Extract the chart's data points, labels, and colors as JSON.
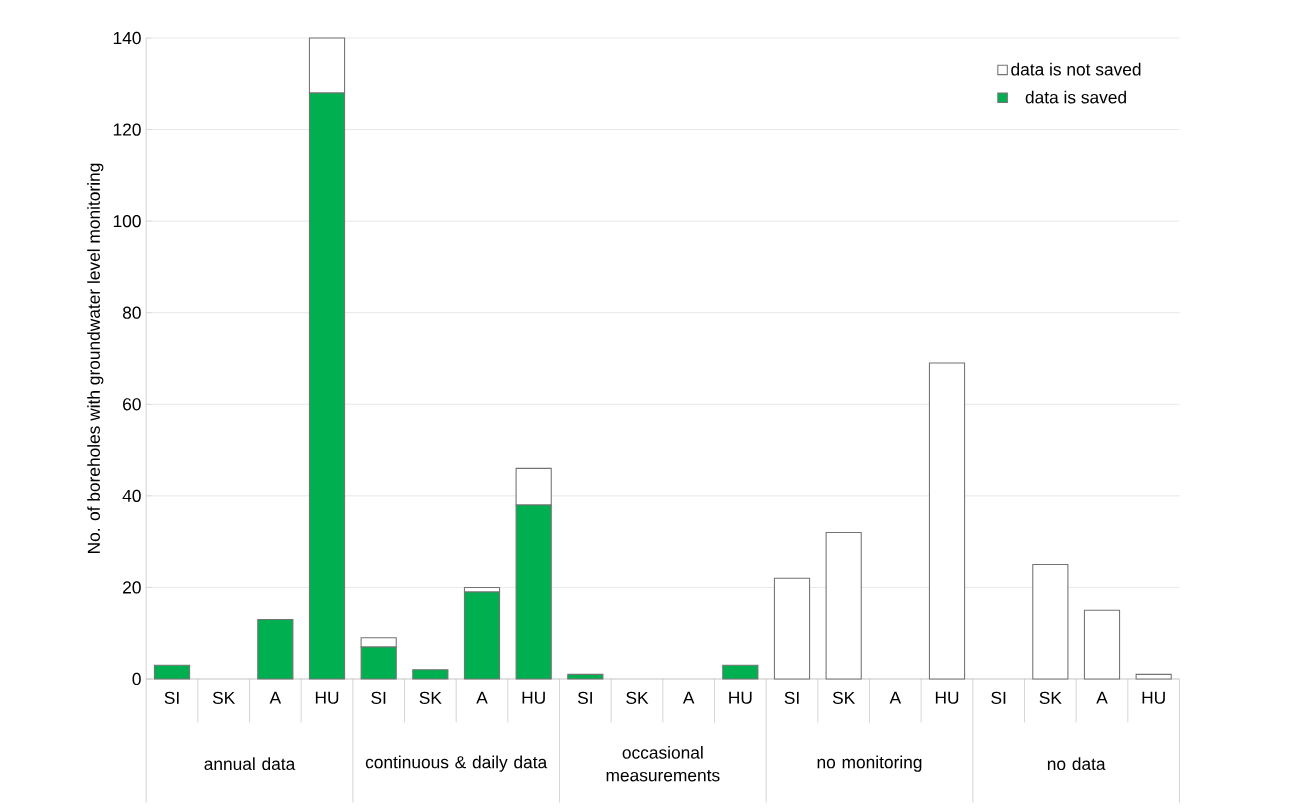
{
  "chart_data": {
    "type": "bar",
    "stacked": true,
    "ylabel": "No. of boreholes with groundwater level monitoring",
    "categories": [
      "SI",
      "SK",
      "A",
      "HU",
      "SI",
      "SK",
      "A",
      "HU",
      "SI",
      "SK",
      "A",
      "HU",
      "SI",
      "SK",
      "A",
      "HU",
      "SI",
      "SK",
      "A",
      "HU"
    ],
    "series": [
      {
        "name": "data is saved",
        "color": "#00b050",
        "values": [
          3,
          0,
          13,
          128,
          7,
          2,
          19,
          38,
          1,
          0,
          0,
          3,
          0,
          0,
          0,
          0,
          0,
          0,
          0,
          0
        ]
      },
      {
        "name": "data is not saved",
        "color": "#ffffff",
        "values": [
          0,
          0,
          0,
          12,
          2,
          0,
          1,
          8,
          0,
          0,
          0,
          0,
          22,
          32,
          0,
          69,
          0,
          25,
          15,
          1
        ]
      }
    ],
    "annotations": [
      "annual data",
      "continuous & daily data",
      "occasional measurements",
      "no monitoring",
      "no data"
    ],
    "ylim": [
      0,
      140
    ],
    "yticks": [
      0,
      20,
      40,
      60,
      80,
      100,
      120,
      140
    ],
    "grid": "y",
    "legend": "top right"
  }
}
